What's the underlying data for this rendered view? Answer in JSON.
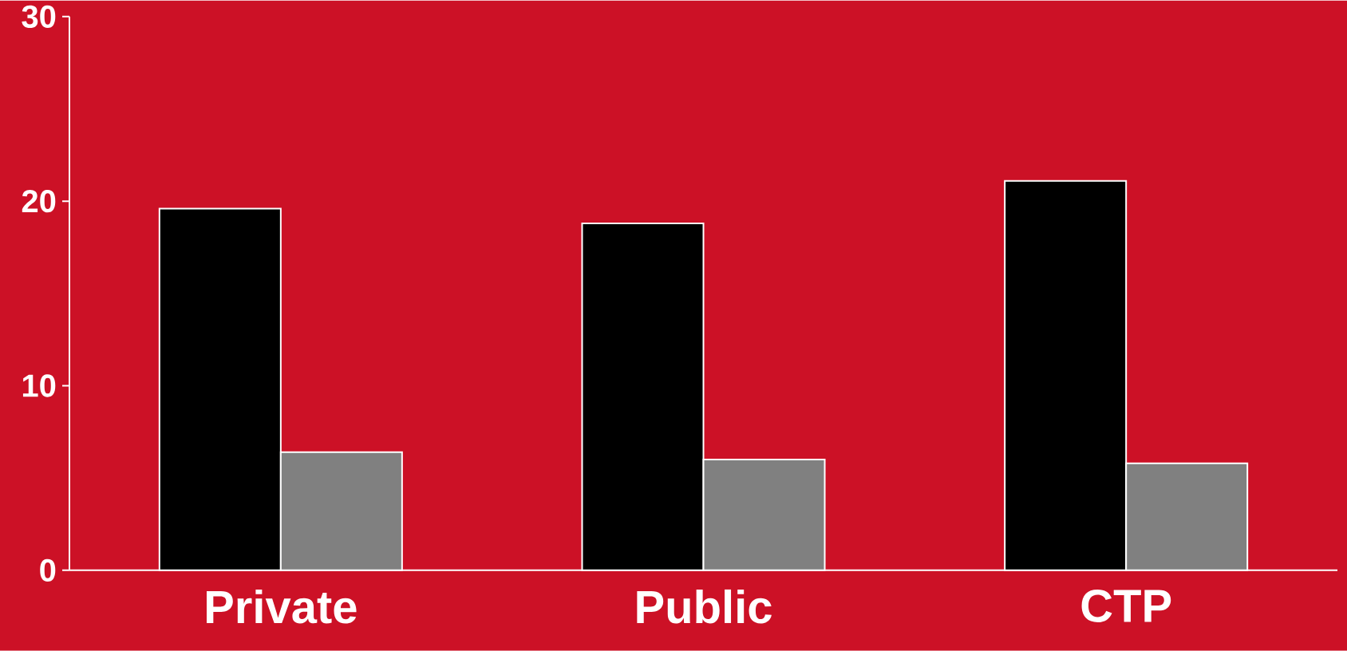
{
  "chart_data": {
    "type": "bar",
    "categories": [
      "Private",
      "Public",
      "CTP"
    ],
    "series": [
      {
        "color": "#000000",
        "values": [
          19.6,
          18.8,
          21.1
        ]
      },
      {
        "color": "#808080",
        "values": [
          6.4,
          6.0,
          5.8
        ]
      }
    ],
    "ylim": [
      0,
      30
    ],
    "yticks": [
      0,
      10,
      20,
      30
    ]
  }
}
